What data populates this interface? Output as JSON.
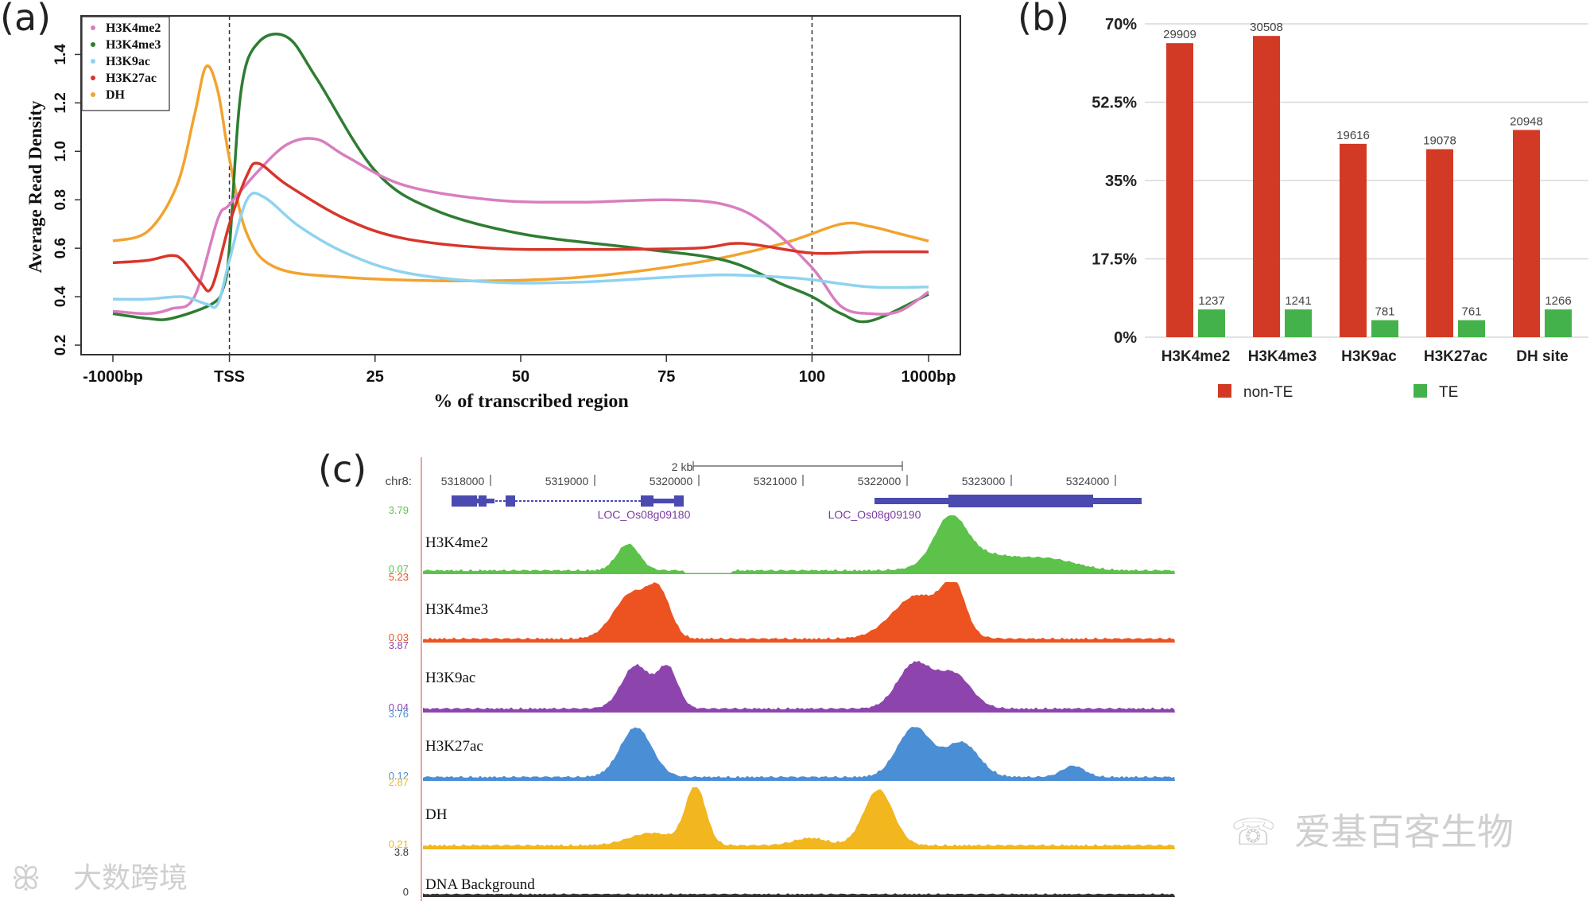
{
  "panels": {
    "a": "(a)",
    "b": "(b)",
    "c": "(c)"
  },
  "colors": {
    "H3K4me2": "#d87ec0",
    "H3K4me3": "#2e7d32",
    "H3K9ac": "#8fd3f0",
    "H3K27ac": "#d9352a",
    "DH": "#f2a32e",
    "nonTE": "#d23a26",
    "TE": "#44b24a"
  },
  "chart_data": [
    {
      "id": "a",
      "type": "line",
      "xlabel": "% of transcribed region",
      "ylabel": "Average Read Density",
      "ylim": [
        0.2,
        1.5
      ],
      "yticks": [
        "0.2",
        "0.4",
        "0.6",
        "0.8",
        "1.0",
        "1.2",
        "1.4"
      ],
      "xticks": [
        "-1000bp",
        "TSS",
        "25",
        "50",
        "75",
        "100",
        "1000bp"
      ],
      "xtick_pos": [
        -20,
        0,
        25,
        50,
        75,
        100,
        120
      ],
      "vlines": [
        0,
        100
      ],
      "legend": [
        "H3K4me2",
        "H3K4me3",
        "H3K9ac",
        "H3K27ac",
        "DH"
      ],
      "series": [
        {
          "name": "DH",
          "points": [
            [
              -20,
              0.63
            ],
            [
              -14,
              0.67
            ],
            [
              -9,
              0.86
            ],
            [
              -6,
              1.15
            ],
            [
              -4,
              1.35
            ],
            [
              -2,
              1.25
            ],
            [
              0,
              0.97
            ],
            [
              3,
              0.66
            ],
            [
              8,
              0.52
            ],
            [
              20,
              0.48
            ],
            [
              40,
              0.465
            ],
            [
              60,
              0.48
            ],
            [
              80,
              0.54
            ],
            [
              95,
              0.62
            ],
            [
              105,
              0.7
            ],
            [
              110,
              0.69
            ],
            [
              115,
              0.66
            ],
            [
              120,
              0.63
            ]
          ]
        },
        {
          "name": "H3K4me3",
          "points": [
            [
              -20,
              0.33
            ],
            [
              -14,
              0.31
            ],
            [
              -10,
              0.31
            ],
            [
              -3,
              0.37
            ],
            [
              -1,
              0.44
            ],
            [
              0,
              0.6
            ],
            [
              2,
              1.25
            ],
            [
              5,
              1.45
            ],
            [
              10,
              1.47
            ],
            [
              15,
              1.3
            ],
            [
              25,
              0.92
            ],
            [
              35,
              0.76
            ],
            [
              50,
              0.66
            ],
            [
              70,
              0.6
            ],
            [
              85,
              0.55
            ],
            [
              95,
              0.45
            ],
            [
              100,
              0.4
            ],
            [
              105,
              0.33
            ],
            [
              110,
              0.3
            ],
            [
              120,
              0.41
            ]
          ]
        },
        {
          "name": "H3K4me2",
          "points": [
            [
              -20,
              0.34
            ],
            [
              -14,
              0.33
            ],
            [
              -10,
              0.35
            ],
            [
              -6,
              0.4
            ],
            [
              -2,
              0.72
            ],
            [
              0,
              0.78
            ],
            [
              5,
              0.92
            ],
            [
              10,
              1.03
            ],
            [
              15,
              1.05
            ],
            [
              20,
              0.98
            ],
            [
              30,
              0.86
            ],
            [
              45,
              0.8
            ],
            [
              60,
              0.79
            ],
            [
              75,
              0.8
            ],
            [
              85,
              0.78
            ],
            [
              92,
              0.7
            ],
            [
              100,
              0.52
            ],
            [
              105,
              0.36
            ],
            [
              110,
              0.33
            ],
            [
              115,
              0.34
            ],
            [
              120,
              0.42
            ]
          ]
        },
        {
          "name": "H3K27ac",
          "points": [
            [
              -20,
              0.54
            ],
            [
              -14,
              0.55
            ],
            [
              -10,
              0.57
            ],
            [
              -8,
              0.55
            ],
            [
              -5,
              0.46
            ],
            [
              -3,
              0.44
            ],
            [
              0,
              0.7
            ],
            [
              3,
              0.9
            ],
            [
              5,
              0.95
            ],
            [
              10,
              0.86
            ],
            [
              20,
              0.72
            ],
            [
              30,
              0.64
            ],
            [
              45,
              0.6
            ],
            [
              60,
              0.595
            ],
            [
              80,
              0.6
            ],
            [
              88,
              0.62
            ],
            [
              100,
              0.58
            ],
            [
              110,
              0.585
            ],
            [
              120,
              0.585
            ]
          ]
        },
        {
          "name": "H3K9ac",
          "points": [
            [
              -20,
              0.39
            ],
            [
              -14,
              0.39
            ],
            [
              -8,
              0.4
            ],
            [
              -4,
              0.37
            ],
            [
              -2,
              0.37
            ],
            [
              0,
              0.55
            ],
            [
              3,
              0.8
            ],
            [
              6,
              0.81
            ],
            [
              12,
              0.69
            ],
            [
              20,
              0.58
            ],
            [
              30,
              0.5
            ],
            [
              45,
              0.46
            ],
            [
              60,
              0.46
            ],
            [
              75,
              0.48
            ],
            [
              85,
              0.49
            ],
            [
              95,
              0.48
            ],
            [
              100,
              0.47
            ],
            [
              110,
              0.44
            ],
            [
              120,
              0.44
            ]
          ]
        }
      ]
    },
    {
      "id": "b",
      "type": "bar",
      "ylim": [
        0,
        70
      ],
      "yticks": [
        "0%",
        "17.5%",
        "35%",
        "52.5%",
        "70%"
      ],
      "categories": [
        "H3K4me2",
        "H3K4me3",
        "H3K9ac",
        "H3K27ac",
        "DH site"
      ],
      "series": [
        {
          "name": "non-TE",
          "values": [
            65.7,
            67.3,
            43.2,
            42.0,
            46.3
          ],
          "labels": [
            "29909",
            "30508",
            "19616",
            "19078",
            "20948"
          ]
        },
        {
          "name": "TE",
          "values": [
            6.2,
            6.2,
            3.8,
            3.8,
            6.2
          ],
          "labels": [
            "1237",
            "1241",
            "781",
            "761",
            "1266"
          ]
        }
      ]
    },
    {
      "id": "c",
      "type": "area",
      "chrom": "chr8:",
      "scale_label": "2 kb",
      "positions": [
        "5318000",
        "5319000",
        "5320000",
        "5321000",
        "5322000",
        "5323000",
        "5324000"
      ],
      "genes": [
        "LOC_Os08g09180",
        "LOC_Os08g09190"
      ],
      "tracks": [
        {
          "name": "H3K4me2",
          "max": "3.79",
          "min": "0.07"
        },
        {
          "name": "H3K4me3",
          "max": "5.23",
          "min": "0.03"
        },
        {
          "name": "H3K9ac",
          "max": "3.87",
          "min": "0.04"
        },
        {
          "name": "H3K27ac",
          "max": "3.76",
          "min": "0.12"
        },
        {
          "name": "DH",
          "max": "2.87",
          "min": "0.21"
        },
        {
          "name": "DNA Background",
          "max": "3.8",
          "min": "0"
        }
      ]
    }
  ],
  "watermarks": {
    "left": "大数跨境",
    "right": "爱基百客生物"
  }
}
